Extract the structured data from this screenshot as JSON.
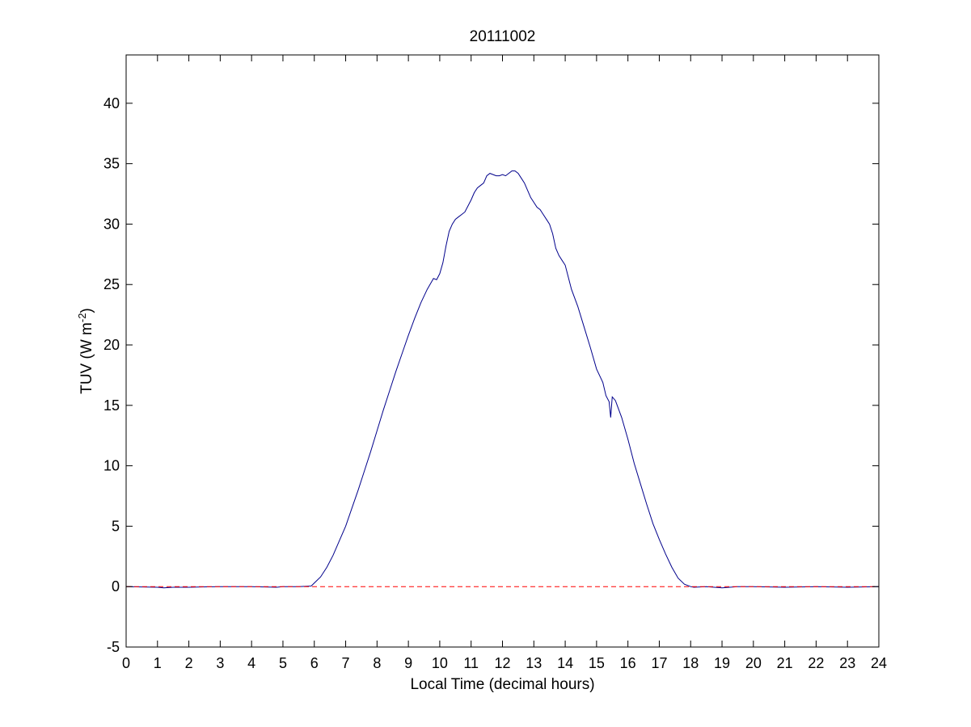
{
  "chart_data": {
    "type": "line",
    "title": "20111002",
    "xlabel": "Local Time (decimal hours)",
    "ylabel": {
      "main": "TUV (W m",
      "superscript": "-2",
      "close": ")"
    },
    "xlim": [
      0,
      24
    ],
    "ylim": [
      -5,
      44
    ],
    "xticks": [
      0,
      1,
      2,
      3,
      4,
      5,
      6,
      7,
      8,
      9,
      10,
      11,
      12,
      13,
      14,
      15,
      16,
      17,
      18,
      19,
      20,
      21,
      22,
      23,
      24
    ],
    "yticks": [
      -5,
      0,
      5,
      10,
      15,
      20,
      25,
      30,
      35,
      40
    ],
    "grid": false,
    "legend": "none",
    "series": [
      {
        "color": "#00008b",
        "style": "solid",
        "x": [
          0.0,
          1.0,
          1.2,
          1.5,
          2.0,
          3.0,
          4.0,
          4.8,
          5.0,
          5.5,
          5.9,
          6.0,
          6.2,
          6.4,
          6.6,
          6.8,
          7.0,
          7.2,
          7.4,
          7.6,
          7.8,
          8.0,
          8.2,
          8.4,
          8.6,
          8.8,
          9.0,
          9.2,
          9.4,
          9.6,
          9.8,
          9.9,
          10.0,
          10.1,
          10.2,
          10.3,
          10.4,
          10.5,
          10.6,
          10.7,
          10.8,
          10.9,
          11.0,
          11.1,
          11.2,
          11.3,
          11.4,
          11.5,
          11.6,
          11.7,
          11.8,
          11.9,
          12.0,
          12.1,
          12.2,
          12.3,
          12.4,
          12.5,
          12.6,
          12.7,
          12.8,
          12.9,
          13.0,
          13.1,
          13.2,
          13.3,
          13.4,
          13.5,
          13.6,
          13.7,
          13.8,
          13.9,
          14.0,
          14.1,
          14.2,
          14.4,
          14.6,
          14.8,
          15.0,
          15.2,
          15.3,
          15.4,
          15.45,
          15.5,
          15.6,
          15.8,
          16.0,
          16.2,
          16.4,
          16.6,
          16.8,
          17.0,
          17.2,
          17.4,
          17.6,
          17.8,
          18.0,
          18.1,
          18.5,
          19.0,
          19.5,
          20.0,
          21.0,
          22.0,
          23.0,
          24.0
        ],
        "y": [
          0.0,
          -0.05,
          -0.1,
          -0.05,
          -0.05,
          0.0,
          0.0,
          -0.05,
          0.0,
          0.0,
          0.05,
          0.3,
          0.8,
          1.6,
          2.6,
          3.8,
          5.0,
          6.5,
          8.0,
          9.6,
          11.2,
          12.9,
          14.6,
          16.2,
          17.8,
          19.3,
          20.8,
          22.2,
          23.5,
          24.6,
          25.5,
          25.4,
          25.9,
          26.8,
          28.2,
          29.4,
          30.0,
          30.4,
          30.6,
          30.8,
          31.0,
          31.5,
          32.0,
          32.6,
          33.0,
          33.2,
          33.4,
          34.0,
          34.2,
          34.1,
          34.0,
          34.0,
          34.1,
          34.0,
          34.2,
          34.4,
          34.4,
          34.2,
          33.8,
          33.4,
          32.8,
          32.2,
          31.8,
          31.4,
          31.2,
          30.8,
          30.4,
          30.0,
          29.2,
          28.0,
          27.4,
          27.0,
          26.6,
          25.6,
          24.6,
          23.2,
          21.5,
          19.8,
          18.0,
          16.9,
          15.8,
          15.3,
          14.0,
          15.7,
          15.4,
          14.0,
          12.2,
          10.2,
          8.5,
          6.8,
          5.2,
          3.9,
          2.7,
          1.6,
          0.7,
          0.2,
          0.0,
          -0.05,
          0.0,
          -0.1,
          0.0,
          0.0,
          -0.05,
          0.0,
          -0.05,
          0.0
        ]
      },
      {
        "color": "#ff0000",
        "style": "dashed",
        "x": [
          0,
          24
        ],
        "y": [
          0,
          0
        ]
      }
    ]
  }
}
